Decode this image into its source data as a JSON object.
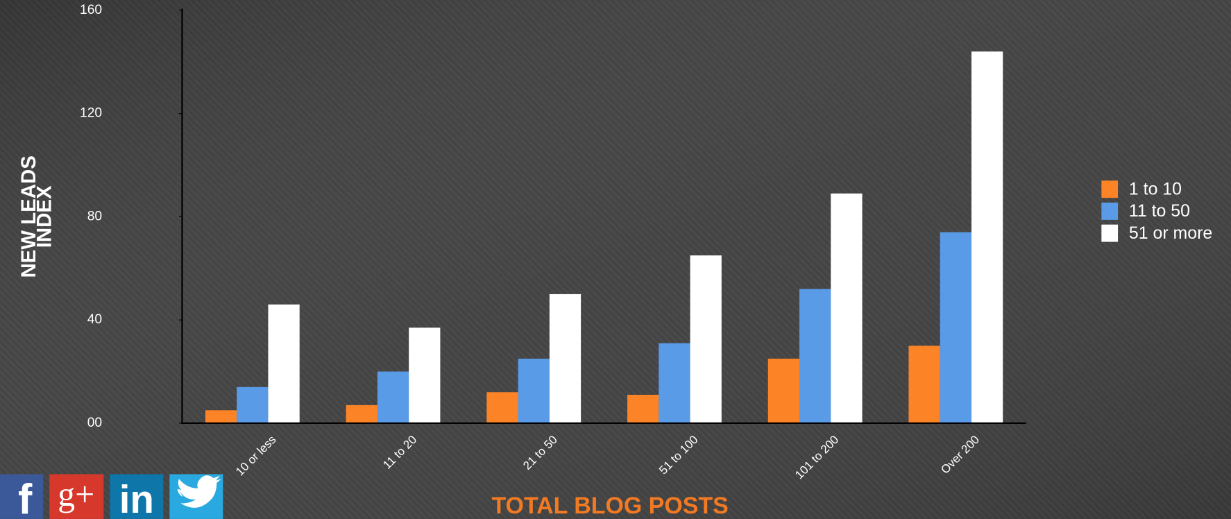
{
  "chart_data": {
    "type": "bar",
    "y_label": [
      "NEW LEADS",
      "INDEX"
    ],
    "x_label": "TOTAL BLOG POSTS",
    "categories": [
      "10 or less",
      "11 to 20",
      "21 to 50",
      "51 to 100",
      "101 to 200",
      "Over 200"
    ],
    "series": [
      {
        "name": "1 to 10",
        "color": "#fd8426",
        "values": [
          5,
          7,
          12,
          11,
          25,
          30
        ]
      },
      {
        "name": "11 to 50",
        "color": "#5a9be8",
        "values": [
          14,
          20,
          25,
          31,
          52,
          74
        ]
      },
      {
        "name": "51 or more",
        "color": "#ffffff",
        "values": [
          46,
          37,
          50,
          65,
          89,
          144
        ]
      }
    ],
    "ylim": [
      0,
      160
    ],
    "yticks": [
      {
        "value": 0,
        "label": "00"
      },
      40,
      80,
      120,
      160
    ],
    "legend": "right"
  },
  "social_icons": [
    "f",
    "g+",
    "in"
  ]
}
